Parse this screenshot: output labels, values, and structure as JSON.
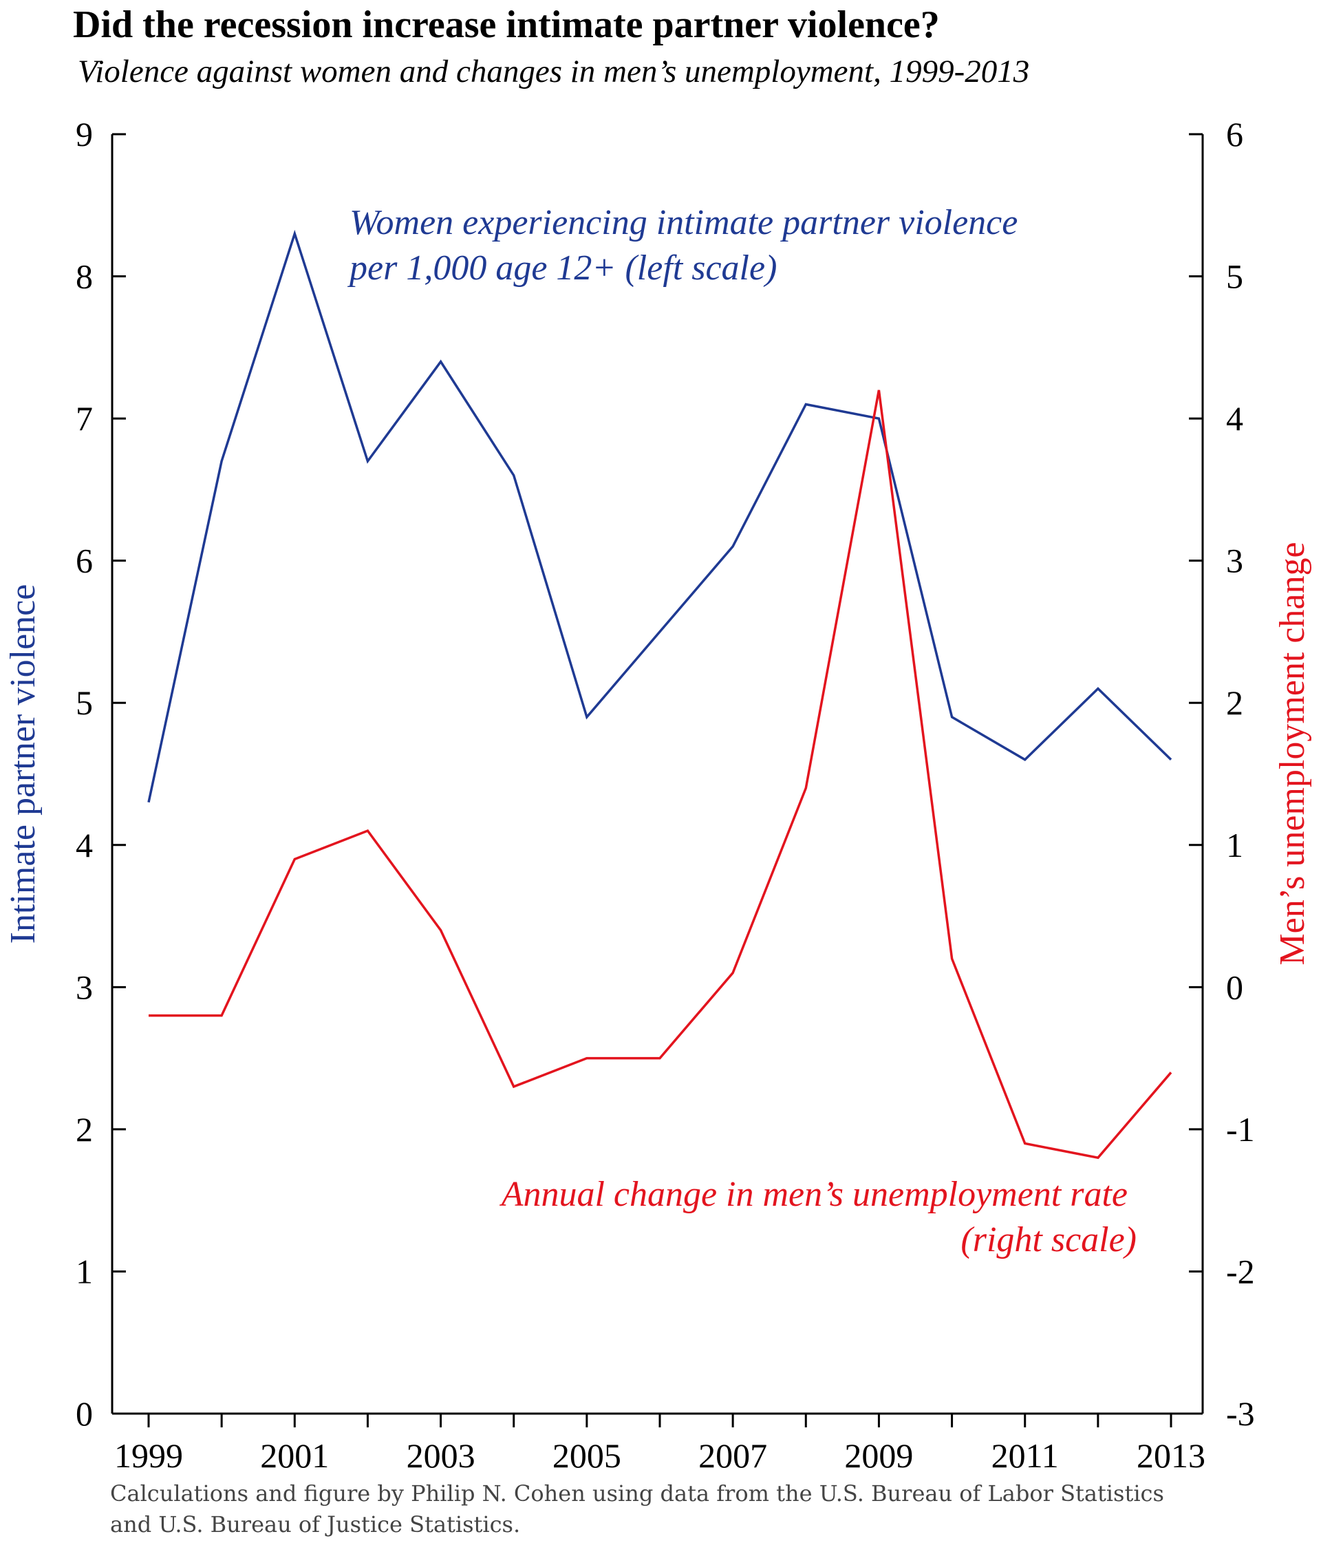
{
  "header": {
    "title": "Did the recession increase intimate partner violence?",
    "subtitle": "Violence against women and changes in men’s unemployment, 1999-2013"
  },
  "footer": {
    "source": "Calculations and figure by Philip N. Cohen using data from the U.S. Bureau of Labor Statistics and U.S. Bureau of Justice Statistics."
  },
  "colors": {
    "violence": "#1f3a93",
    "unemployment": "#e3141e",
    "axis": "#000000"
  },
  "chart_data": {
    "type": "line",
    "title": "Did the recession increase intimate partner violence?",
    "subtitle": "Violence against women and changes in men’s unemployment, 1999-2013",
    "x": [
      1999,
      2000,
      2001,
      2002,
      2003,
      2004,
      2005,
      2006,
      2007,
      2008,
      2009,
      2010,
      2011,
      2012,
      2013
    ],
    "x_tick_labels": [
      "1999",
      "2001",
      "2003",
      "2005",
      "2007",
      "2009",
      "2011",
      "2013"
    ],
    "x_tick_values": [
      1999,
      2001,
      2003,
      2005,
      2007,
      2009,
      2011,
      2013
    ],
    "ylabel_left": "Intimate partner violence",
    "ylabel_right": "Men’s unemployment change",
    "ylim_left": [
      0,
      9
    ],
    "ylim_right": [
      -3,
      6
    ],
    "y_ticks_left": [
      "0",
      "1",
      "2",
      "3",
      "4",
      "5",
      "6",
      "7",
      "8",
      "9"
    ],
    "y_ticks_right": [
      "-3",
      "-2",
      "-1",
      "0",
      "1",
      "2",
      "3",
      "4",
      "5",
      "6"
    ],
    "grid": false,
    "series": [
      {
        "name": "Women experiencing intimate partner violence per 1,000 age 12+ (left scale)",
        "axis": "left",
        "color": "#1f3a93",
        "label_lines": [
          "Women experiencing intimate partner violence",
          "per 1,000 age 12+ (left scale)"
        ],
        "values": [
          4.3,
          6.7,
          8.3,
          6.7,
          7.4,
          6.6,
          4.9,
          5.5,
          6.1,
          7.1,
          7.0,
          4.9,
          4.6,
          5.1,
          4.6
        ]
      },
      {
        "name": "Annual change in men’s unemployment rate (right scale)",
        "axis": "right",
        "color": "#e3141e",
        "label_lines": [
          "Annual change in men’s unemployment rate",
          "(right scale)"
        ],
        "values": [
          -0.2,
          -0.2,
          0.9,
          1.1,
          0.4,
          -0.7,
          -0.5,
          -0.5,
          0.1,
          1.4,
          4.2,
          0.2,
          -1.1,
          -1.2,
          -0.6
        ]
      }
    ]
  }
}
